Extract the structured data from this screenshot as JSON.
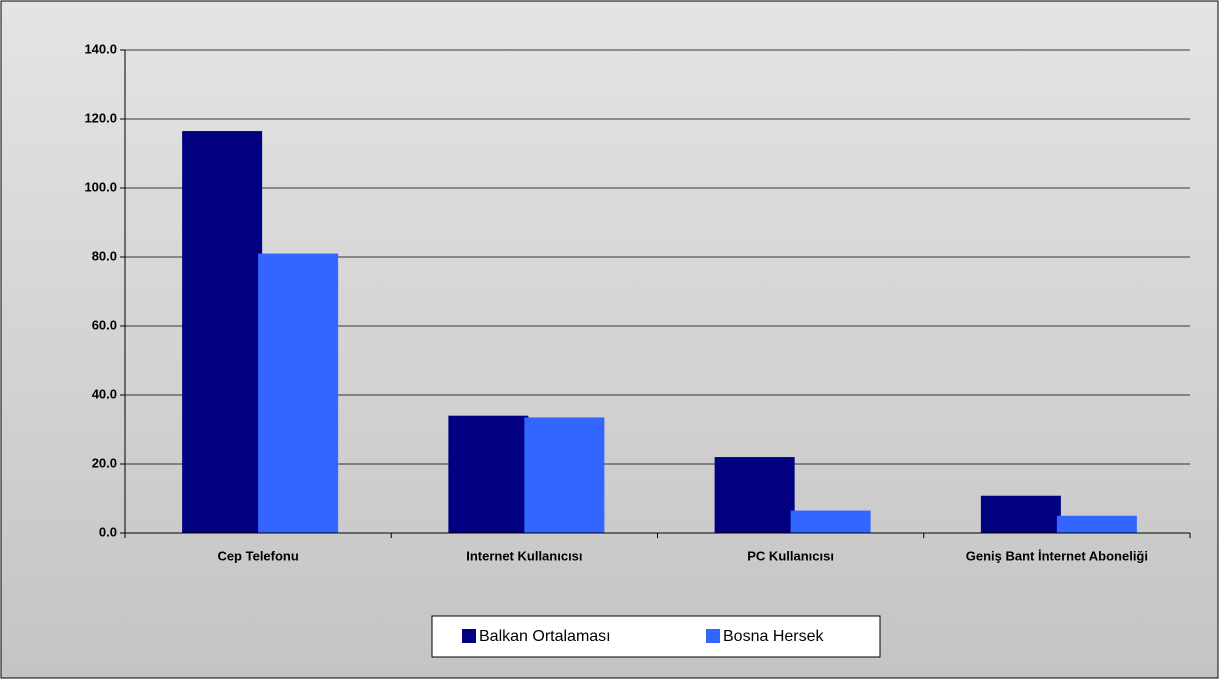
{
  "chart_data": {
    "type": "bar",
    "categories": [
      "Cep Telefonu",
      "Internet Kullanıcısı",
      "PC Kullanıcısı",
      "Geniş Bant İnternet Aboneliği"
    ],
    "series": [
      {
        "name": "Balkan Ortalaması",
        "color": "#000080",
        "values": [
          116.5,
          34,
          22,
          10.8
        ]
      },
      {
        "name": "Bosna Hersek",
        "color": "#3366ff",
        "values": [
          81,
          33.5,
          6.5,
          5
        ]
      }
    ],
    "ylim": [
      0,
      140
    ],
    "yticks": [
      {
        "value": 0,
        "label": "0.0"
      },
      {
        "value": 20,
        "label": "20.0"
      },
      {
        "value": 40,
        "label": "40.0"
      },
      {
        "value": 60,
        "label": "60.0"
      },
      {
        "value": 80,
        "label": "80.0"
      },
      {
        "value": 100,
        "label": "100.0"
      },
      {
        "value": 120,
        "label": "120.0"
      },
      {
        "value": 140,
        "label": "140.0"
      }
    ],
    "grid": true,
    "legend": "bottom"
  }
}
